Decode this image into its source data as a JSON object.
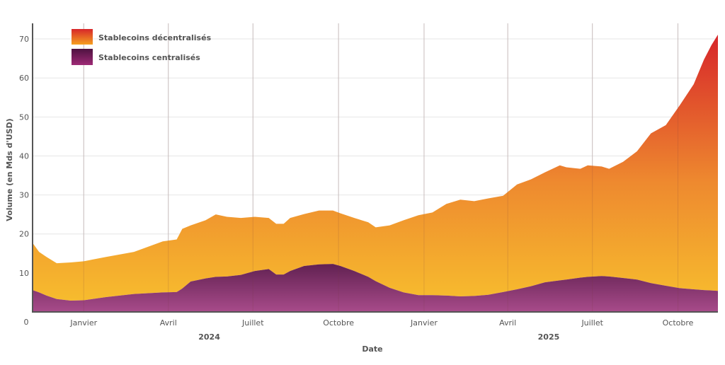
{
  "chart_data": {
    "type": "area",
    "stacked": true,
    "xlabel": "Date",
    "ylabel": "Volume (en Mds d'USD)",
    "ylim": [
      0,
      74
    ],
    "xlim": [
      "2023-11-07",
      "2025-11-13"
    ],
    "grid": true,
    "legend_position": "top-left",
    "y_ticks": [
      "0",
      "10",
      "20",
      "30",
      "40",
      "50",
      "60",
      "70"
    ],
    "x_ticks": [
      {
        "date": "2024-01-01",
        "label": "Janvier"
      },
      {
        "date": "2024-04-01",
        "label": "Avril"
      },
      {
        "date": "2024-07-01",
        "label": "Juillet"
      },
      {
        "date": "2024-10-01",
        "label": "Octobre"
      },
      {
        "date": "2025-01-01",
        "label": "Janvier"
      },
      {
        "date": "2025-04-01",
        "label": "Avril"
      },
      {
        "date": "2025-07-01",
        "label": "Juillet"
      },
      {
        "date": "2025-10-01",
        "label": "Octobre"
      }
    ],
    "year_labels": [
      {
        "date": "2024-05-15",
        "label": "2024"
      },
      {
        "date": "2025-05-15",
        "label": "2025"
      }
    ],
    "x": [
      "2023-11-07",
      "2023-11-14",
      "2023-11-22",
      "2023-12-03",
      "2023-12-18",
      "2024-01-01",
      "2024-01-25",
      "2024-02-24",
      "2024-03-26",
      "2024-04-10",
      "2024-04-16",
      "2024-04-25",
      "2024-05-11",
      "2024-05-22",
      "2024-06-03",
      "2024-06-18",
      "2024-07-03",
      "2024-07-18",
      "2024-07-26",
      "2024-08-03",
      "2024-08-10",
      "2024-08-25",
      "2024-09-10",
      "2024-09-25",
      "2024-10-03",
      "2024-10-18",
      "2024-11-02",
      "2024-11-10",
      "2024-11-25",
      "2024-12-10",
      "2024-12-26",
      "2025-01-10",
      "2025-01-25",
      "2025-02-09",
      "2025-02-24",
      "2025-03-11",
      "2025-03-27",
      "2025-04-11",
      "2025-04-26",
      "2025-05-11",
      "2025-05-27",
      "2025-06-03",
      "2025-06-18",
      "2025-06-26",
      "2025-07-11",
      "2025-07-19",
      "2025-08-03",
      "2025-08-18",
      "2025-09-02",
      "2025-09-18",
      "2025-10-03",
      "2025-10-18",
      "2025-10-29",
      "2025-11-06",
      "2025-11-13"
    ],
    "series": [
      {
        "name": "Stablecoins centralisés",
        "colors": [
          "#5e1f4f",
          "#a84b8a"
        ],
        "values": [
          5.6,
          5.0,
          4.2,
          3.3,
          2.9,
          3.0,
          3.8,
          4.6,
          5.0,
          5.1,
          6.0,
          7.8,
          8.6,
          9.0,
          9.1,
          9.5,
          10.5,
          11.0,
          9.6,
          9.6,
          10.5,
          11.8,
          12.2,
          12.3,
          11.8,
          10.5,
          9.0,
          7.9,
          6.2,
          5.0,
          4.3,
          4.3,
          4.2,
          4.0,
          4.1,
          4.4,
          5.1,
          5.8,
          6.6,
          7.6,
          8.1,
          8.3,
          8.8,
          9.0,
          9.2,
          9.1,
          8.7,
          8.3,
          7.4,
          6.7,
          6.1,
          5.8,
          5.6,
          5.5,
          5.4
        ]
      },
      {
        "name": "Stablecoins décentralisés",
        "colors": [
          "#d7262a",
          "#ee8a2f",
          "#f7bd2e"
        ],
        "values": [
          12.1,
          10.4,
          9.9,
          9.2,
          9.8,
          10.0,
          10.3,
          10.8,
          13.1,
          13.5,
          15.3,
          14.4,
          14.9,
          16.0,
          15.3,
          14.6,
          13.9,
          13.1,
          13.0,
          13.0,
          13.6,
          13.3,
          13.8,
          13.7,
          13.5,
          13.6,
          14.0,
          13.8,
          16.0,
          18.5,
          20.5,
          21.2,
          23.5,
          24.8,
          24.3,
          24.7,
          24.7,
          26.9,
          27.4,
          28.2,
          29.5,
          28.8,
          27.9,
          28.6,
          28.1,
          27.6,
          29.8,
          32.9,
          38.4,
          41.2,
          46.9,
          52.6,
          59.1,
          62.9,
          65.7
        ]
      }
    ],
    "legend": [
      "Stablecoins décentralisés",
      "Stablecoins centralisés"
    ]
  }
}
